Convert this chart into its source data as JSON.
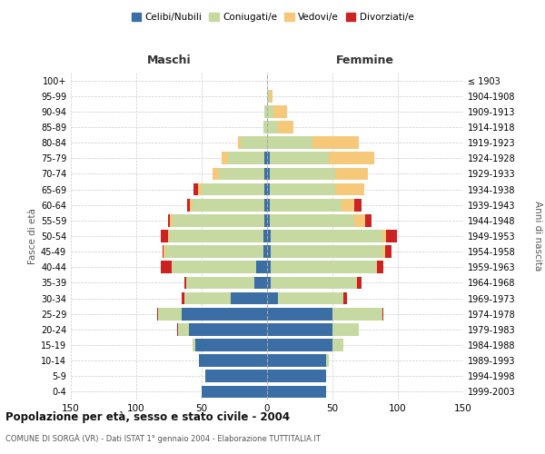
{
  "age_groups": [
    "0-4",
    "5-9",
    "10-14",
    "15-19",
    "20-24",
    "25-29",
    "30-34",
    "35-39",
    "40-44",
    "45-49",
    "50-54",
    "55-59",
    "60-64",
    "65-69",
    "70-74",
    "75-79",
    "80-84",
    "85-89",
    "90-94",
    "95-99",
    "100+"
  ],
  "birth_years": [
    "1999-2003",
    "1994-1998",
    "1989-1993",
    "1984-1988",
    "1979-1983",
    "1974-1978",
    "1969-1973",
    "1964-1968",
    "1959-1963",
    "1954-1958",
    "1949-1953",
    "1944-1948",
    "1939-1943",
    "1934-1938",
    "1929-1933",
    "1924-1928",
    "1919-1923",
    "1914-1918",
    "1909-1913",
    "1904-1908",
    "≤ 1903"
  ],
  "male": {
    "celibi": [
      50,
      47,
      52,
      55,
      60,
      65,
      28,
      10,
      8,
      3,
      3,
      2,
      2,
      2,
      2,
      2,
      0,
      0,
      0,
      0,
      0
    ],
    "coniugati": [
      0,
      0,
      0,
      2,
      8,
      18,
      35,
      52,
      65,
      75,
      72,
      70,
      55,
      48,
      35,
      28,
      20,
      3,
      2,
      0,
      0
    ],
    "vedovi": [
      0,
      0,
      0,
      0,
      0,
      0,
      0,
      0,
      0,
      1,
      1,
      2,
      2,
      3,
      5,
      5,
      2,
      0,
      0,
      0,
      0
    ],
    "divorziati": [
      0,
      0,
      0,
      0,
      1,
      1,
      2,
      1,
      8,
      1,
      5,
      2,
      2,
      3,
      0,
      0,
      0,
      0,
      0,
      0,
      0
    ]
  },
  "female": {
    "nubili": [
      45,
      45,
      45,
      50,
      50,
      50,
      8,
      3,
      3,
      3,
      3,
      2,
      2,
      2,
      2,
      2,
      0,
      0,
      0,
      0,
      0
    ],
    "coniugate": [
      0,
      0,
      2,
      8,
      20,
      38,
      50,
      65,
      80,
      85,
      85,
      65,
      55,
      50,
      50,
      45,
      35,
      8,
      5,
      2,
      0
    ],
    "vedove": [
      0,
      0,
      0,
      0,
      0,
      0,
      0,
      1,
      1,
      2,
      3,
      8,
      10,
      22,
      25,
      35,
      35,
      12,
      10,
      2,
      0
    ],
    "divorziate": [
      0,
      0,
      0,
      0,
      0,
      1,
      3,
      3,
      5,
      5,
      8,
      5,
      5,
      0,
      0,
      0,
      0,
      0,
      0,
      0,
      0
    ]
  },
  "color_celibi": "#3A6EA5",
  "color_coniugati": "#C5D9A0",
  "color_vedovi": "#F5C87A",
  "color_divorziati": "#CC2222",
  "title": "Popolazione per età, sesso e stato civile - 2004",
  "subtitle": "COMUNE DI SORGÀ (VR) - Dati ISTAT 1° gennaio 2004 - Elaborazione TUTTITALIA.IT",
  "xlabel_left": "Maschi",
  "xlabel_right": "Femmine",
  "ylabel_left": "Fasce di età",
  "ylabel_right": "Anni di nascita",
  "xlim": 150,
  "bg_color": "#ffffff",
  "grid_color": "#cccccc"
}
